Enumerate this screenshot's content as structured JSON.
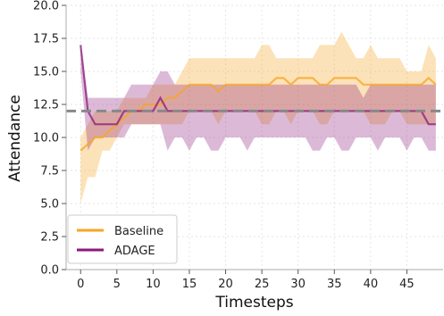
{
  "chart_data": {
    "type": "line",
    "title": "",
    "xlabel": "Timesteps",
    "ylabel": "Attendance",
    "xlim": [
      -2,
      50
    ],
    "ylim": [
      0,
      20
    ],
    "xticks": [
      0,
      5,
      10,
      15,
      20,
      25,
      30,
      35,
      40,
      45
    ],
    "yticks": [
      0.0,
      2.5,
      5.0,
      7.5,
      10.0,
      12.5,
      15.0,
      17.5,
      20.0
    ],
    "xtick_labels": [
      "0",
      "5",
      "10",
      "15",
      "20",
      "25",
      "30",
      "35",
      "40",
      "45"
    ],
    "ytick_labels": [
      "0.0",
      "2.5",
      "5.0",
      "7.5",
      "10.0",
      "12.5",
      "15.0",
      "17.5",
      "20.0"
    ],
    "grid": true,
    "legend_position": "lower-left",
    "reference_line": {
      "y": 12,
      "style": "dashed",
      "color": "#888888"
    },
    "x": [
      0,
      1,
      2,
      3,
      4,
      5,
      6,
      7,
      8,
      9,
      10,
      11,
      12,
      13,
      14,
      15,
      16,
      17,
      18,
      19,
      20,
      21,
      22,
      23,
      24,
      25,
      26,
      27,
      28,
      29,
      30,
      31,
      32,
      33,
      34,
      35,
      36,
      37,
      38,
      39,
      40,
      41,
      42,
      43,
      44,
      45,
      46,
      47,
      48,
      49
    ],
    "series": [
      {
        "name": "Baseline",
        "color": "#f5a623",
        "mean": [
          9,
          9.5,
          10,
          10,
          10.5,
          11,
          11.5,
          12,
          12,
          12.5,
          12.5,
          12.5,
          13,
          13,
          13.5,
          14,
          14,
          14,
          14,
          13.5,
          14,
          14,
          14,
          14,
          14,
          14,
          14,
          14.5,
          14.5,
          14,
          14.5,
          14.5,
          14.5,
          14,
          14,
          14.5,
          14.5,
          14.5,
          14.5,
          14,
          14,
          14,
          14,
          14,
          14,
          14,
          14,
          14,
          14.5,
          14
        ],
        "lower": [
          5,
          7,
          7,
          9,
          9,
          10,
          11,
          11,
          11,
          11,
          11,
          11,
          11,
          11,
          11,
          12,
          12,
          12,
          12,
          11,
          12,
          12,
          12,
          12,
          12,
          11,
          11,
          12,
          12,
          11,
          12,
          12,
          12,
          11,
          11,
          12,
          12,
          12,
          12,
          12,
          11,
          11,
          11,
          12,
          12,
          11,
          11,
          11,
          11,
          11
        ],
        "upper": [
          10,
          11,
          12,
          12,
          12,
          12,
          13,
          13,
          13,
          13,
          14,
          14,
          14,
          14,
          15,
          16,
          16,
          16,
          16,
          16,
          16,
          16,
          16,
          16,
          16,
          17,
          17,
          16,
          16,
          16,
          16,
          16,
          16,
          17,
          17,
          17,
          18,
          17,
          16,
          16,
          17,
          16,
          16,
          16,
          16,
          15,
          15,
          15,
          17,
          16
        ]
      },
      {
        "name": "ADAGE",
        "color": "#8b1a7a",
        "mean": [
          17,
          12,
          11,
          11,
          11,
          11,
          12,
          12,
          12,
          12,
          12,
          13,
          12,
          12,
          12,
          12,
          12,
          12,
          12,
          12,
          12,
          12,
          12,
          12,
          12,
          12,
          12,
          12,
          12,
          12,
          12,
          12,
          12,
          12,
          12,
          12,
          12,
          12,
          12,
          12,
          12,
          12,
          12,
          12,
          12,
          12,
          12,
          12,
          11,
          11
        ],
        "lower": [
          15,
          9,
          10,
          10,
          10,
          10,
          10,
          11,
          11,
          11,
          11,
          11,
          9,
          10,
          10,
          9,
          10,
          10,
          9,
          9,
          10,
          10,
          10,
          9,
          10,
          10,
          10,
          10,
          10,
          10,
          10,
          10,
          9,
          9,
          10,
          10,
          9,
          9,
          10,
          10,
          10,
          9,
          10,
          10,
          10,
          9,
          10,
          10,
          9,
          9
        ],
        "upper": [
          17,
          13,
          13,
          13,
          13,
          13,
          13,
          14,
          14,
          14,
          14,
          15,
          15,
          14,
          14,
          14,
          14,
          14,
          14,
          14,
          14,
          14,
          14,
          14,
          14,
          14,
          14,
          14,
          14,
          14,
          14,
          14,
          14,
          14,
          14,
          14,
          14,
          14,
          14,
          13,
          14,
          14,
          14,
          14,
          14,
          14,
          14,
          14,
          14,
          14
        ]
      }
    ]
  }
}
